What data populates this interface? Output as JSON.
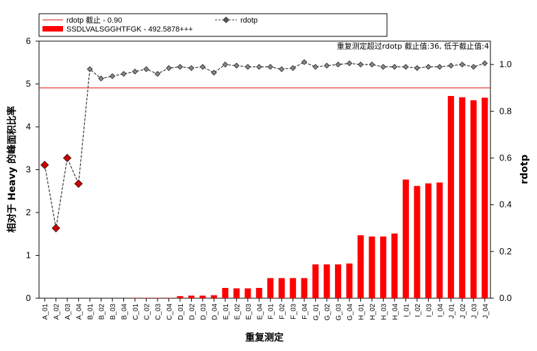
{
  "chart_data": {
    "type": "bar",
    "xlabel": "重复测定",
    "ylabel": "相对于 Heavy 的峰面积比率",
    "y2label": "rdotp",
    "ylim": [
      0,
      6
    ],
    "y2lim": [
      0,
      1.1
    ],
    "yticks": [
      "0",
      "1",
      "2",
      "3",
      "4",
      "5",
      "6"
    ],
    "y2ticks": [
      "0.0",
      "0.2",
      "0.4",
      "0.6",
      "0.8",
      "1.0"
    ],
    "annotation": "重复测定超过rdotp 截止值:36, 低于截止值:4",
    "cutoff": {
      "label": "rdotp 截止 - 0.90",
      "value": 0.9,
      "color": "#e00000"
    },
    "categories": [
      "A_01",
      "A_02",
      "A_03",
      "A_04",
      "B_01",
      "B_02",
      "B_03",
      "B_04",
      "C_01",
      "C_02",
      "C_03",
      "C_04",
      "D_01",
      "D_02",
      "D_03",
      "D_04",
      "E_01",
      "E_02",
      "E_03",
      "E_04",
      "F_01",
      "F_02",
      "F_03",
      "F_04",
      "G_01",
      "G_02",
      "G_03",
      "G_04",
      "H_01",
      "H_02",
      "H_03",
      "H_04",
      "I_01",
      "I_02",
      "I_03",
      "I_04",
      "J_01",
      "J_02",
      "J_03",
      "J_04"
    ],
    "series": [
      {
        "name": "SSDLVALSGGHTFGK - 492.5878+++",
        "type": "bar",
        "axis": "left",
        "color": "#ff0000",
        "values": [
          0,
          0,
          0,
          0,
          0,
          0,
          0,
          0,
          0.01,
          0.01,
          0.01,
          0.01,
          0.05,
          0.06,
          0.06,
          0.07,
          0.24,
          0.23,
          0.23,
          0.24,
          0.47,
          0.47,
          0.47,
          0.47,
          0.79,
          0.79,
          0.79,
          0.81,
          1.47,
          1.44,
          1.44,
          1.51,
          2.77,
          2.62,
          2.68,
          2.7,
          4.72,
          4.69,
          4.62,
          4.68
        ]
      },
      {
        "name": "rdotp",
        "type": "line",
        "axis": "right",
        "color": "#333333",
        "values": [
          0.57,
          0.3,
          0.6,
          0.49,
          0.98,
          0.94,
          0.95,
          0.96,
          0.97,
          0.98,
          0.96,
          0.985,
          0.99,
          0.985,
          0.99,
          0.965,
          1.0,
          0.995,
          0.99,
          0.99,
          0.99,
          0.98,
          0.985,
          1.01,
          0.99,
          0.995,
          1.0,
          1.005,
          1.0,
          1.0,
          0.99,
          0.99,
          0.99,
          0.985,
          0.99,
          0.99,
          0.995,
          1.0,
          0.99,
          1.005
        ],
        "highlight_below_cutoff": true
      }
    ]
  }
}
